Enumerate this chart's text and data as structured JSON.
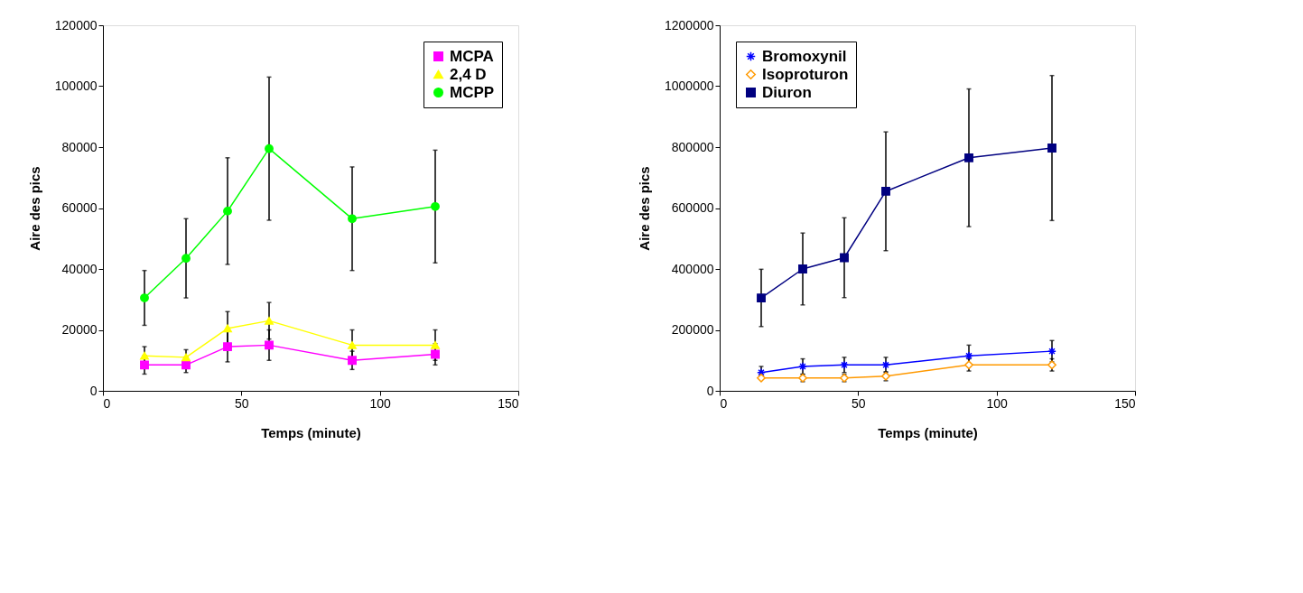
{
  "chart_data": [
    {
      "type": "line",
      "xlabel": "Temps (minute)",
      "ylabel": "Aire des pics",
      "x": [
        15,
        30,
        45,
        60,
        90,
        120
      ],
      "xlim": [
        0,
        150
      ],
      "xticks": [
        0,
        50,
        100,
        150
      ],
      "ylim": [
        0,
        120000
      ],
      "yticks": [
        0,
        20000,
        40000,
        60000,
        80000,
        100000,
        120000
      ],
      "grid": false,
      "legend": "top right",
      "series": [
        {
          "name": "MCPA",
          "color": "#ff00ff",
          "marker": "square",
          "values": [
            8500,
            8500,
            14500,
            15000,
            10000,
            12000
          ],
          "errors": [
            3000,
            2500,
            5000,
            5000,
            3000,
            3500
          ]
        },
        {
          "name": "2,4 D",
          "color": "#ffff00",
          "marker": "triangle",
          "values": [
            11500,
            11000,
            20500,
            23000,
            15000,
            15000
          ],
          "errors": [
            3000,
            2500,
            5500,
            6000,
            5000,
            5000
          ]
        },
        {
          "name": "MCPP",
          "color": "#00ff00",
          "marker": "circle",
          "values": [
            30500,
            43500,
            59000,
            79500,
            56500,
            60500
          ],
          "errors": [
            9000,
            13000,
            17500,
            23500,
            17000,
            18500
          ]
        }
      ]
    },
    {
      "type": "line",
      "xlabel": "Temps (minute)",
      "ylabel": "Aire des pics",
      "x": [
        15,
        30,
        45,
        60,
        90,
        120
      ],
      "xlim": [
        0,
        150
      ],
      "xticks": [
        0,
        50,
        100,
        150
      ],
      "ylim": [
        0,
        1200000
      ],
      "yticks": [
        0,
        200000,
        400000,
        600000,
        800000,
        1000000,
        1200000
      ],
      "grid": false,
      "legend": "top left",
      "series": [
        {
          "name": "Bromoxynil",
          "color": "#0000ff",
          "marker": "cross",
          "values": [
            60000,
            80000,
            85000,
            85000,
            115000,
            130000
          ],
          "errors": [
            20000,
            25000,
            25000,
            25000,
            35000,
            35000
          ]
        },
        {
          "name": "Isoproturon",
          "color": "#ff9900",
          "marker": "diamond",
          "values": [
            42000,
            42000,
            42000,
            48000,
            85000,
            85000
          ],
          "errors": [
            null,
            12000,
            12000,
            15000,
            20000,
            20000
          ]
        },
        {
          "name": "Diuron",
          "color": "#000080",
          "marker": "square",
          "values": [
            305000,
            400000,
            437000,
            655000,
            765000,
            797000
          ],
          "errors": [
            94000,
            118000,
            131000,
            195000,
            226000,
            238000
          ]
        }
      ]
    }
  ]
}
